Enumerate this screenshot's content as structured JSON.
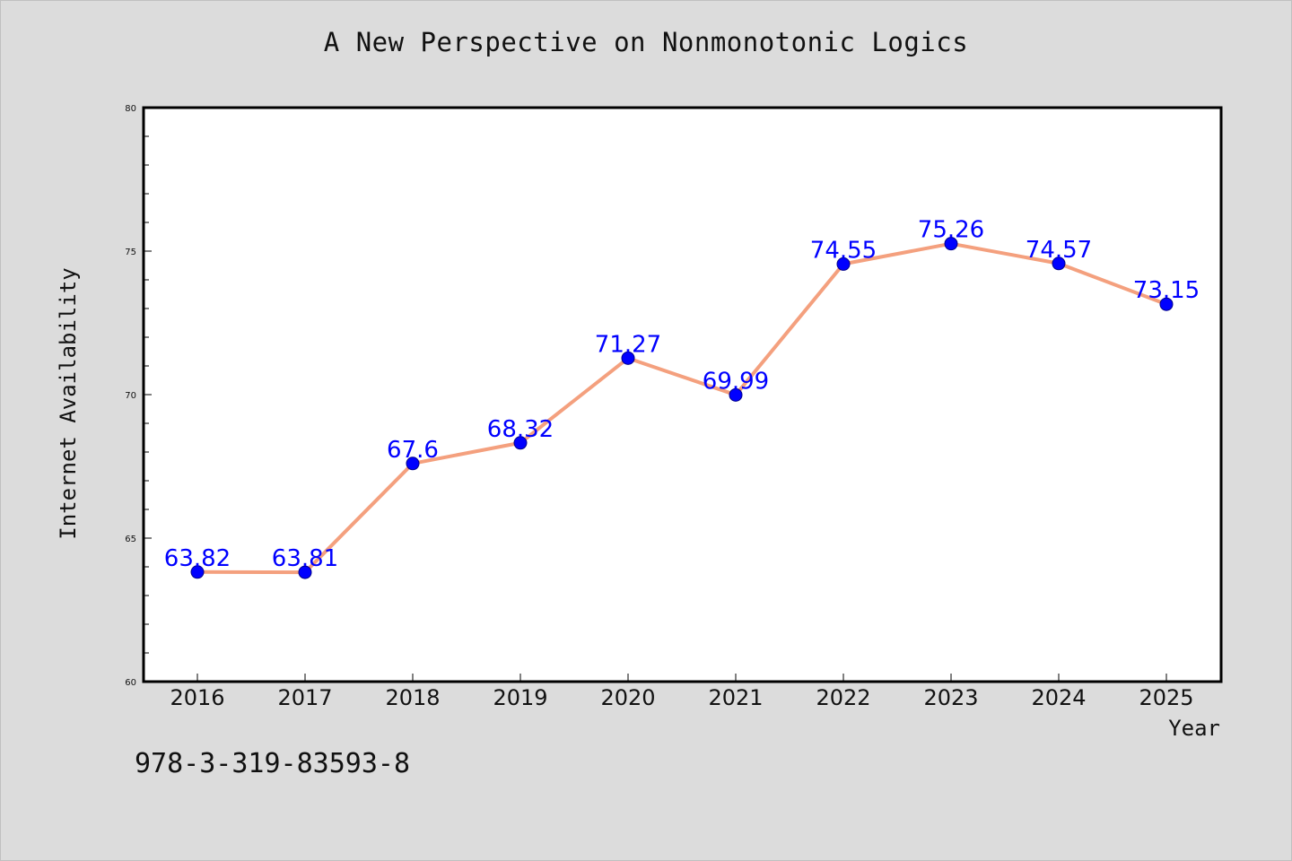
{
  "chart_data": {
    "type": "line",
    "title": "A New Perspective on Nonmonotonic Logics",
    "xlabel": "Year",
    "ylabel": "Internet Availability",
    "categories": [
      "2016",
      "2017",
      "2018",
      "2019",
      "2020",
      "2021",
      "2022",
      "2023",
      "2024",
      "2025"
    ],
    "series": [
      {
        "values": [
          63.82,
          63.81,
          67.6,
          68.32,
          71.27,
          69.99,
          74.55,
          75.26,
          74.57,
          73.15
        ],
        "labels": [
          "63.82",
          "63.81",
          "67.6",
          "68.32",
          "71.27",
          "69.99",
          "74.55",
          "75.26",
          "74.57",
          "73.15"
        ]
      }
    ],
    "ylim": [
      60,
      80
    ],
    "yticks": [
      "60",
      "65",
      "70",
      "75",
      "80"
    ],
    "grid": false,
    "colors": {
      "line": "#f4a07e",
      "marker": "#0000ff",
      "label": "#0000ff",
      "plot_bg": "#ffffff",
      "page_bg": "#dcdcdc"
    }
  },
  "footer": {
    "isbn": "978-3-319-83593-8"
  }
}
